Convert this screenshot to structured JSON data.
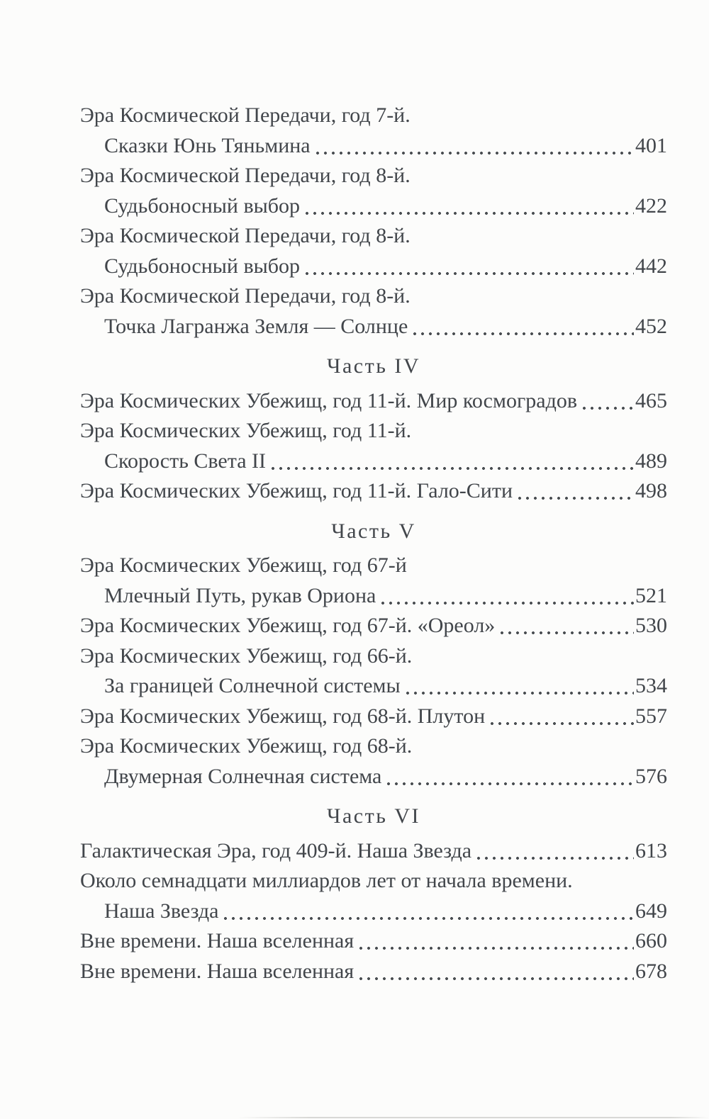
{
  "page": {
    "background_color": "#fcfcfb",
    "text_color": "#42464b",
    "leader_dot_color": "#4b4f53"
  },
  "toc": {
    "sections": [
      {
        "heading": "",
        "entries": [
          {
            "text": "Эра Космической Передачи, год 7-й.",
            "indent": 0,
            "page": ""
          },
          {
            "text": "Сказки Юнь Тяньмина",
            "indent": 1,
            "page": "401"
          },
          {
            "text": "Эра Космической Передачи, год 8-й.",
            "indent": 0,
            "page": ""
          },
          {
            "text": "Судьбоносный выбор",
            "indent": 1,
            "page": "422"
          },
          {
            "text": "Эра Космической Передачи, год 8-й.",
            "indent": 0,
            "page": ""
          },
          {
            "text": "Судьбоносный выбор",
            "indent": 1,
            "page": "442"
          },
          {
            "text": "Эра Космической Передачи, год 8-й.",
            "indent": 0,
            "page": ""
          },
          {
            "text": "Точка Лагранжа Земля — Солнце",
            "indent": 1,
            "page": "452"
          }
        ]
      },
      {
        "heading": "Часть IV",
        "entries": [
          {
            "text": "Эра Космических Убежищ, год 11-й. Мир космоградов",
            "indent": 0,
            "page": "465"
          },
          {
            "text": "Эра Космических Убежищ, год 11-й.",
            "indent": 0,
            "page": ""
          },
          {
            "text": "Скорость Света II",
            "indent": 1,
            "page": "489"
          },
          {
            "text": "Эра Космических Убежищ, год 11-й. Гало-Сити",
            "indent": 0,
            "page": "498"
          }
        ]
      },
      {
        "heading": "Часть V",
        "entries": [
          {
            "text": "Эра Космических Убежищ, год 67-й",
            "indent": 0,
            "page": ""
          },
          {
            "text": "Млечный Путь, рукав Ориона",
            "indent": 1,
            "page": "521"
          },
          {
            "text": "Эра Космических Убежищ, год 67-й. «Ореол»",
            "indent": 0,
            "page": "530"
          },
          {
            "text": "Эра Космических Убежищ, год 66-й.",
            "indent": 0,
            "page": ""
          },
          {
            "text": "За границей Солнечной системы",
            "indent": 1,
            "page": "534"
          },
          {
            "text": "Эра Космических Убежищ, год 68-й. Плутон",
            "indent": 0,
            "page": "557"
          },
          {
            "text": "Эра Космических Убежищ, год 68-й.",
            "indent": 0,
            "page": ""
          },
          {
            "text": "Двумерная Солнечная система",
            "indent": 1,
            "page": "576"
          }
        ]
      },
      {
        "heading": "Часть VI",
        "entries": [
          {
            "text": "Галактическая Эра, год 409-й. Наша Звезда",
            "indent": 0,
            "page": "613"
          },
          {
            "text": "Около семнадцати миллиардов лет от начала времени.",
            "indent": 0,
            "page": ""
          },
          {
            "text": "Наша Звезда",
            "indent": 1,
            "page": "649"
          },
          {
            "text": "Вне времени. Наша вселенная",
            "indent": 0,
            "page": "660"
          },
          {
            "text": "Вне времени. Наша вселенная",
            "indent": 0,
            "page": "678"
          }
        ]
      }
    ]
  }
}
